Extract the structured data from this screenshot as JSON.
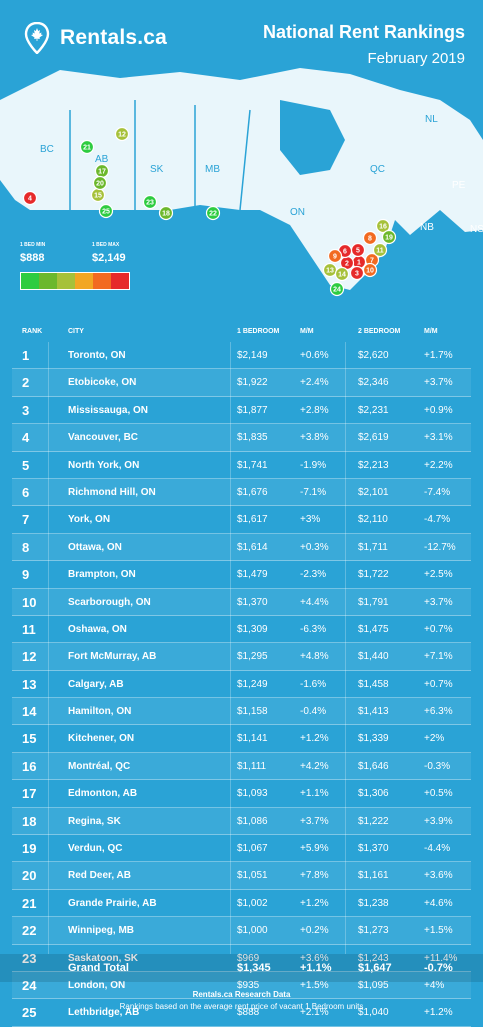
{
  "brand": {
    "name": "Rentals.ca"
  },
  "title": "National Rent Rankings",
  "subtitle": "February 2019",
  "legend": {
    "min_label": "1 BED MIN",
    "min_value": "$888",
    "max_label": "1 BED MAX",
    "max_value": "$2,149",
    "colors": [
      "#2ecc40",
      "#6cb82c",
      "#a6c13a",
      "#f2a623",
      "#f26a21",
      "#e62a2a"
    ]
  },
  "map": {
    "province_labels": [
      "BC",
      "AB",
      "SK",
      "MB",
      "ON",
      "QC",
      "NL",
      "PE",
      "NB",
      "NS"
    ],
    "markers": [
      {
        "rank": "1",
        "color": "#e62a2a"
      },
      {
        "rank": "2",
        "color": "#e62a2a"
      },
      {
        "rank": "3",
        "color": "#e62a2a"
      },
      {
        "rank": "4",
        "color": "#e62a2a"
      },
      {
        "rank": "5",
        "color": "#e62a2a"
      },
      {
        "rank": "6",
        "color": "#e62a2a"
      },
      {
        "rank": "7",
        "color": "#f26a21"
      },
      {
        "rank": "8",
        "color": "#f26a21"
      },
      {
        "rank": "9",
        "color": "#f26a21"
      },
      {
        "rank": "10",
        "color": "#f26a21"
      },
      {
        "rank": "11",
        "color": "#a6c13a"
      },
      {
        "rank": "12",
        "color": "#a6c13a"
      },
      {
        "rank": "13",
        "color": "#a6c13a"
      },
      {
        "rank": "14",
        "color": "#a6c13a"
      },
      {
        "rank": "15",
        "color": "#a6c13a"
      },
      {
        "rank": "16",
        "color": "#a6c13a"
      },
      {
        "rank": "17",
        "color": "#6cb82c"
      },
      {
        "rank": "18",
        "color": "#6cb82c"
      },
      {
        "rank": "19",
        "color": "#6cb82c"
      },
      {
        "rank": "20",
        "color": "#6cb82c"
      },
      {
        "rank": "21",
        "color": "#2ecc40"
      },
      {
        "rank": "22",
        "color": "#2ecc40"
      },
      {
        "rank": "23",
        "color": "#2ecc40"
      },
      {
        "rank": "24",
        "color": "#2ecc40"
      },
      {
        "rank": "25",
        "color": "#2ecc40"
      }
    ]
  },
  "columns": {
    "rank": "RANK",
    "city": "CITY",
    "one_bed": "1 BEDROOM",
    "mm1": "M/M",
    "two_bed": "2 BEDROOM",
    "mm2": "M/M"
  },
  "chart_data": {
    "type": "table",
    "title": "National Rent Rankings",
    "subtitle": "February 2019",
    "headers": [
      "RANK",
      "CITY",
      "1 BEDROOM",
      "M/M",
      "2 BEDROOM",
      "M/M"
    ],
    "rows": [
      [
        "1",
        "Toronto, ON",
        "$2,149",
        "+0.6%",
        "$2,620",
        "+1.7%"
      ],
      [
        "2",
        "Etobicoke, ON",
        "$1,922",
        "+2.4%",
        "$2,346",
        "+3.7%"
      ],
      [
        "3",
        "Mississauga, ON",
        "$1,877",
        "+2.8%",
        "$2,231",
        "+0.9%"
      ],
      [
        "4",
        "Vancouver, BC",
        "$1,835",
        "+3.8%",
        "$2,619",
        "+3.1%"
      ],
      [
        "5",
        "North York, ON",
        "$1,741",
        "-1.9%",
        "$2,213",
        "+2.2%"
      ],
      [
        "6",
        "Richmond Hill, ON",
        "$1,676",
        "-7.1%",
        "$2,101",
        "-7.4%"
      ],
      [
        "7",
        "York, ON",
        "$1,617",
        "+3%",
        "$2,110",
        "-4.7%"
      ],
      [
        "8",
        "Ottawa, ON",
        "$1,614",
        "+0.3%",
        "$1,711",
        "-12.7%"
      ],
      [
        "9",
        "Brampton, ON",
        "$1,479",
        "-2.3%",
        "$1,722",
        "+2.5%"
      ],
      [
        "10",
        "Scarborough, ON",
        "$1,370",
        "+4.4%",
        "$1,791",
        "+3.7%"
      ],
      [
        "11",
        "Oshawa, ON",
        "$1,309",
        "-6.3%",
        "$1,475",
        "+0.7%"
      ],
      [
        "12",
        "Fort McMurray, AB",
        "$1,295",
        "+4.8%",
        "$1,440",
        "+7.1%"
      ],
      [
        "13",
        "Calgary, AB",
        "$1,249",
        "-1.6%",
        "$1,458",
        "+0.7%"
      ],
      [
        "14",
        "Hamilton, ON",
        "$1,158",
        "-0.4%",
        "$1,413",
        "+6.3%"
      ],
      [
        "15",
        "Kitchener, ON",
        "$1,141",
        "+1.2%",
        "$1,339",
        "+2%"
      ],
      [
        "16",
        "Montréal, QC",
        "$1,111",
        "+4.2%",
        "$1,646",
        "-0.3%"
      ],
      [
        "17",
        "Edmonton, AB",
        "$1,093",
        "+1.1%",
        "$1,306",
        "+0.5%"
      ],
      [
        "18",
        "Regina, SK",
        "$1,086",
        "+3.7%",
        "$1,222",
        "+3.9%"
      ],
      [
        "19",
        "Verdun, QC",
        "$1,067",
        "+5.9%",
        "$1,370",
        "-4.4%"
      ],
      [
        "20",
        "Red Deer, AB",
        "$1,051",
        "+7.8%",
        "$1,161",
        "+3.6%"
      ],
      [
        "21",
        "Grande Prairie, AB",
        "$1,002",
        "+1.2%",
        "$1,238",
        "+4.6%"
      ],
      [
        "22",
        "Winnipeg, MB",
        "$1,000",
        "+0.2%",
        "$1,273",
        "+1.5%"
      ],
      [
        "23",
        "Saskatoon, SK",
        "$969",
        "+3.6%",
        "$1,243",
        "+11.4%"
      ],
      [
        "24",
        "London, ON",
        "$935",
        "+1.5%",
        "$1,095",
        "+4%"
      ],
      [
        "25",
        "Lethbridge, AB",
        "$888",
        "+2.1%",
        "$1,040",
        "+1.2%"
      ]
    ],
    "total": [
      "Grand Total",
      "$1,345",
      "+1.1%",
      "$1,647",
      "-0.7%"
    ]
  },
  "footer": {
    "line1": "Rentals.ca Research Data",
    "line2": "Rankings based on the average rent price of vacant 1 Bedroom units"
  }
}
